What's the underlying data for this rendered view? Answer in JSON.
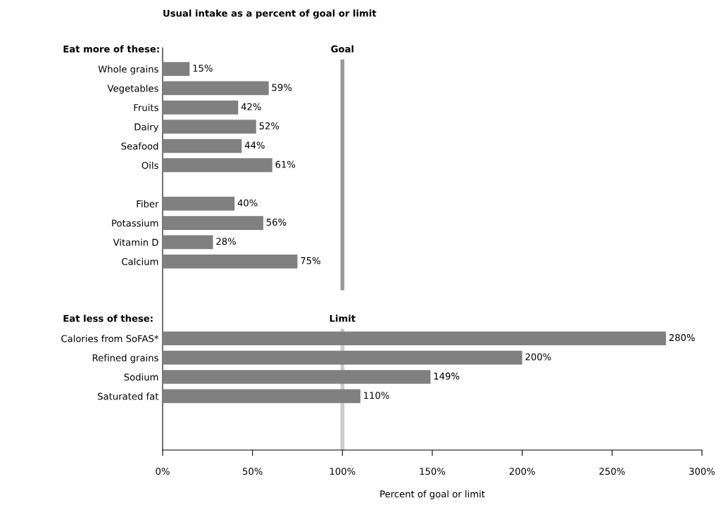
{
  "chart_data": {
    "type": "bar",
    "orientation": "horizontal",
    "title": "Usual intake as a percent of goal or limit",
    "xlabel": "Percent of goal or limit",
    "annotations": [
      "Eat more of these:",
      "Eat less of these:"
    ],
    "categories": [
      null,
      "Whole grains",
      "Vegetables",
      "Fruits",
      "Dairy",
      "Seafood",
      "Oils",
      null,
      "Fiber",
      "Potassium",
      "Vitamin D",
      "Calcium",
      null,
      null,
      null,
      "Calories from SoFAS*",
      "Refined grains",
      "Sodium",
      "Saturated fat",
      null,
      null
    ],
    "values": [
      null,
      15,
      59,
      42,
      52,
      44,
      61,
      null,
      40,
      56,
      28,
      75,
      null,
      null,
      null,
      280,
      200,
      149,
      110,
      null,
      null
    ],
    "value_labels": [
      null,
      "15%",
      "59%",
      "42%",
      "52%",
      "44%",
      "61%",
      null,
      "40%",
      "56%",
      "28%",
      "75%",
      null,
      null,
      null,
      "280%",
      "200%",
      "149%",
      "110%",
      null,
      null
    ],
    "color": "#808080",
    "xlim": [
      0,
      300
    ],
    "xticks": [
      {
        "value": 0,
        "label": "0%"
      },
      {
        "value": 50,
        "label": "50%"
      },
      {
        "value": 100,
        "label": "100%"
      },
      {
        "value": 150,
        "label": "150%"
      },
      {
        "value": 200,
        "label": "200%"
      },
      {
        "value": 250,
        "label": "250%"
      },
      {
        "value": 300,
        "label": "300%"
      }
    ],
    "ref_lines": [
      {
        "axis": "x",
        "value": 100,
        "label": "Goal",
        "color": "#999999"
      },
      {
        "axis": "x",
        "value": 100,
        "label": "Limit",
        "color": "#cccccc"
      }
    ],
    "grid": false,
    "legend": false
  }
}
